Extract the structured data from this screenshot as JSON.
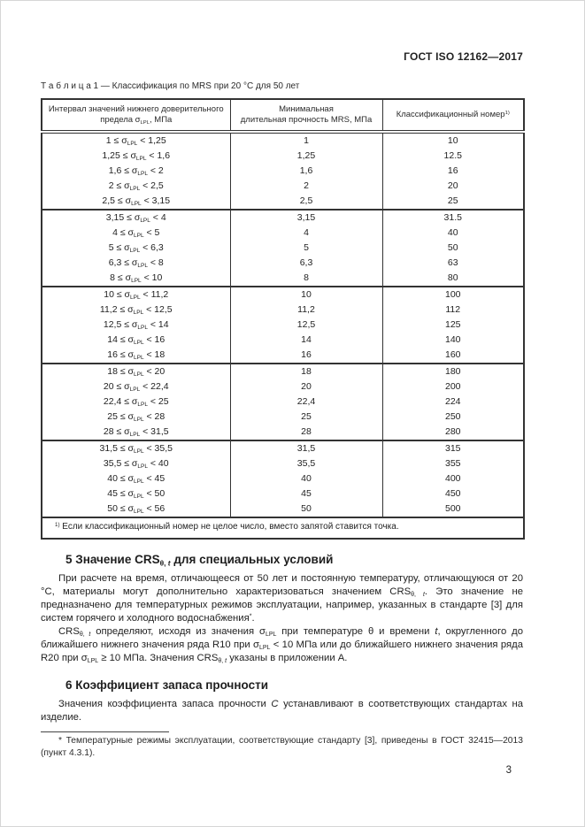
{
  "header": {
    "doc_number": "ГОСТ ISO 12162—2017"
  },
  "table": {
    "caption": "Т а б л и ц а  1 — Классификация по MRS при 20 °С для 50 лет",
    "columns": [
      "Интервал значений нижнего  доверительного\nпредела σ_{LPL}, МПа",
      "Минимальная\nдлительная прочность MRS, МПа",
      "Классификационный номер^{1)}"
    ],
    "groups": [
      {
        "rows": [
          [
            "1 ≤ σ_{LPL} < 1,25",
            "1",
            "10"
          ],
          [
            "1,25 ≤ σ_{LPL} < 1,6",
            "1,25",
            "12.5"
          ],
          [
            "1,6 ≤ σ_{LPL} < 2",
            "1,6",
            "16"
          ],
          [
            "2 ≤ σ_{LPL} < 2,5",
            "2",
            "20"
          ],
          [
            "2,5 ≤ σ_{LPL} < 3,15",
            "2,5",
            "25"
          ]
        ]
      },
      {
        "rows": [
          [
            "3,15 ≤ σ_{LPL} < 4",
            "3,15",
            "31.5"
          ],
          [
            "4 ≤ σ_{LPL} < 5",
            "4",
            "40"
          ],
          [
            "5 ≤ σ_{LPL} <  6,3",
            "5",
            "50"
          ],
          [
            "6,3 ≤ σ_{LPL} <  8",
            "6,3",
            "63"
          ],
          [
            "8 ≤ σ_{LPL} < 10",
            "8",
            "80"
          ]
        ]
      },
      {
        "rows": [
          [
            "10 ≤ σ_{LPL} < 11,2",
            "10",
            "100"
          ],
          [
            "11,2 ≤ σ_{LPL} < 12,5",
            "11,2",
            "112"
          ],
          [
            "12,5 ≤ σ_{LPL} < 14",
            "12,5",
            "125"
          ],
          [
            "14 ≤ σ_{LPL} < 16",
            "14",
            "140"
          ],
          [
            "16 ≤ σ_{LPL} < 18",
            "16",
            "160"
          ]
        ]
      },
      {
        "rows": [
          [
            "18 ≤ σ_{LPL} < 20",
            "18",
            "180"
          ],
          [
            "20 ≤ σ_{LPL} < 22,4",
            "20",
            "200"
          ],
          [
            "22,4 ≤ σ_{LPL} < 25",
            "22,4",
            "224"
          ],
          [
            "25 ≤ σ_{LPL} < 28",
            "25",
            "250"
          ],
          [
            "28 ≤ σ_{LPL} < 31,5",
            "28",
            "280"
          ]
        ]
      },
      {
        "rows": [
          [
            "31,5 ≤ σ_{LPL} < 35,5",
            "31,5",
            "315"
          ],
          [
            "35,5 ≤ σ_{LPL} < 40",
            "35,5",
            "355"
          ],
          [
            "40 ≤ σ_{LPL} < 45",
            "40",
            "400"
          ],
          [
            "45 ≤ σ_{LPL} < 50",
            "45",
            "450"
          ],
          [
            "50 ≤ σ_{LPL} < 56",
            "50",
            "500"
          ]
        ]
      }
    ],
    "footnote": "^{1)} Если классификационный номер не целое число, вместо запятой ставится точка."
  },
  "section5": {
    "heading": "5 Значение CRS_{θ, *t*} для специальных условий",
    "paragraphs": [
      "При расчете на время, отличающееся от 50 лет и  постоянную температуру, отличающуюся от 20 °С, материалы могут дополнительно характеризоваться значением CRS_{θ, *t*}. Это значение не предназначено для температурных режимов эксплуатации, например, указанных в стандарте [3] для систем горячего и холодного водоснабжения^{*}.",
      "CRS_{θ, *t*} определяют, исходя из значения σ_{LPL} при температуре θ и времени *t*, округленного до ближайшего нижнего значения ряда R10 при σ_{LPL} < 10 МПа или до ближайшего нижнего значения ряда R20 при σ_{LPL} ≥ 10 МПа. Значения CRS_{θ, *t*} указаны в приложении А."
    ]
  },
  "section6": {
    "heading": "6 Коэффициент запаса прочности",
    "paragraph": "Значения коэффициента запаса прочности *С* устанавливают в соответствующих стандартах на изделие."
  },
  "footnote": {
    "text": "*  Температурные режимы эксплуатации, соответствующие стандарту [3], приведены в ГОСТ 32415—2013 (пункт 4.3.1)."
  },
  "footer": {
    "page_number": "3"
  }
}
